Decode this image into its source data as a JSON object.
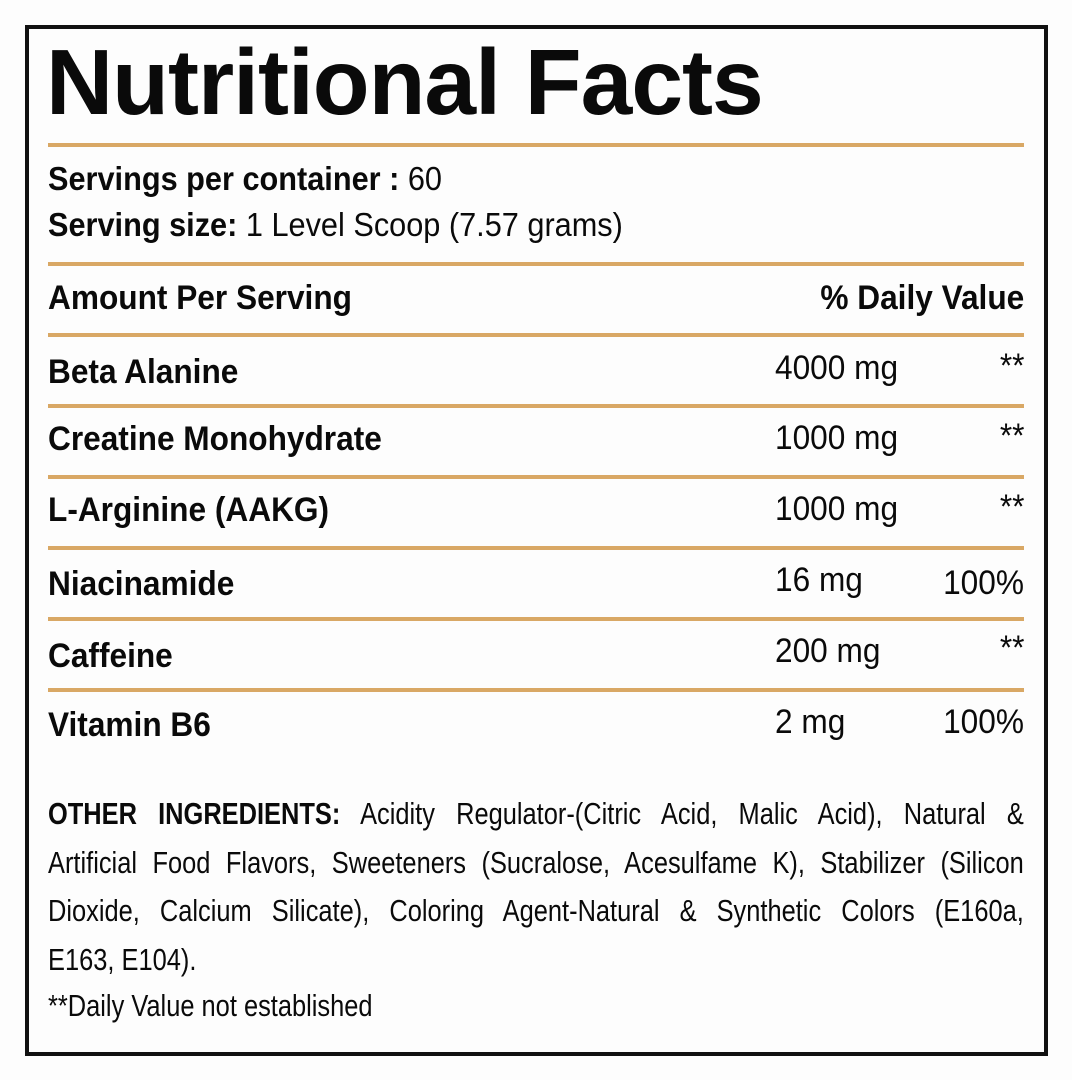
{
  "title": "Nutritional Facts",
  "servings": {
    "per_container_label": "Servings per container :",
    "per_container_value": "60",
    "size_label": "Serving size:",
    "size_value": "1 Level Scoop (7.57 grams)"
  },
  "table": {
    "header_left": "Amount Per Serving",
    "header_right": "% Daily Value",
    "rows": [
      {
        "name": "Beta Alanine",
        "amount": "4000 mg",
        "dv": "**"
      },
      {
        "name": "Creatine Monohydrate",
        "amount": "1000 mg",
        "dv": "**"
      },
      {
        "name": "L-Arginine (AAKG)",
        "amount": "1000 mg",
        "dv": "**"
      },
      {
        "name": "Niacinamide",
        "amount": "16 mg",
        "dv": "100%"
      },
      {
        "name": "Caffeine",
        "amount": "200 mg",
        "dv": "**"
      },
      {
        "name": "Vitamin B6",
        "amount": "2 mg",
        "dv": "100%"
      }
    ]
  },
  "other_ingredients": {
    "label": "OTHER INGREDIENTS:",
    "lines": [
      "Acidity Regulator-(Citric Acid, Malic Acid), Natural &",
      "Artificial Food Flavors, Sweeteners (Sucralose, Acesulfame K), Stabilizer (Silicon",
      "Dioxide, Calcium Silicate), Coloring Agent-Natural & Synthetic Colors (E160a,",
      "E163, E104)."
    ]
  },
  "footnote": "**Daily Value not established",
  "colors": {
    "rule": "#d9a865",
    "border": "#111111",
    "text": "#0a0a0a"
  }
}
